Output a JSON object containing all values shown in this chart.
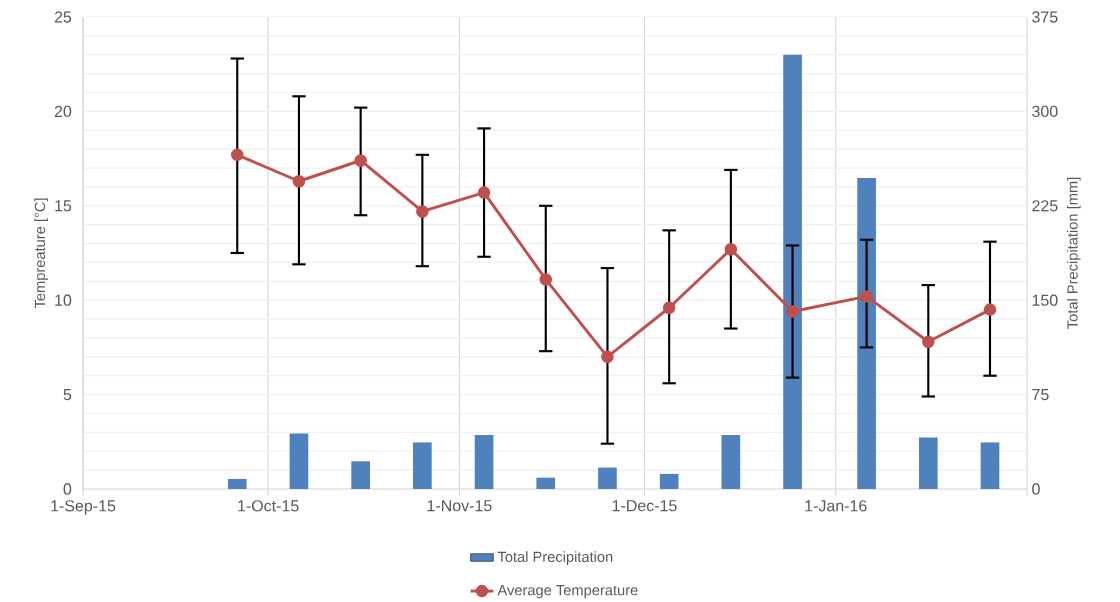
{
  "chart_data": {
    "type": "bar",
    "x": [
      "2015-09-26",
      "2015-10-06",
      "2015-10-16",
      "2015-10-26",
      "2015-11-05",
      "2015-11-15",
      "2015-11-25",
      "2015-12-05",
      "2015-12-15",
      "2015-12-25",
      "2016-01-06",
      "2016-01-16",
      "2016-01-26"
    ],
    "series": [
      {
        "name": "Total Precipitation",
        "axis": "y2",
        "color": "#4f81bd",
        "values": [
          8,
          44,
          22,
          37,
          43,
          9,
          17,
          12,
          43,
          345,
          247,
          41,
          37
        ]
      },
      {
        "name": "Average Temperature",
        "type": "line",
        "color": "#c0504d",
        "marker": "circle",
        "line_style": "solid",
        "values": [
          17.7,
          16.3,
          17.4,
          14.7,
          15.7,
          11.1,
          7.0,
          9.6,
          12.7,
          9.4,
          10.2,
          7.8,
          9.5
        ],
        "errors": [
          [
            12.5,
            22.8
          ],
          [
            11.9,
            20.8
          ],
          [
            14.5,
            20.2
          ],
          [
            11.8,
            17.7
          ],
          [
            12.3,
            19.1
          ],
          [
            7.3,
            15.0
          ],
          [
            2.4,
            11.7
          ],
          [
            5.6,
            13.7
          ],
          [
            8.5,
            16.9
          ],
          [
            5.9,
            12.9
          ],
          [
            7.5,
            13.2
          ],
          [
            4.9,
            10.8
          ],
          [
            6.0,
            13.1
          ]
        ]
      }
    ],
    "ylabel": "Tempreature [°C]",
    "y2label": "Total Precipitation [mm]",
    "xlim": [
      "2015-09-01",
      "2016-02-01"
    ],
    "xticks": [
      {
        "value": "2015-09-01",
        "label": "1-Sep-15"
      },
      {
        "value": "2015-10-01",
        "label": "1-Oct-15"
      },
      {
        "value": "2015-11-01",
        "label": "1-Nov-15"
      },
      {
        "value": "2015-12-01",
        "label": "1-Dec-15"
      },
      {
        "value": "2016-01-01",
        "label": "1-Jan-16"
      },
      {
        "value": "2016-02-01",
        "label": null
      }
    ],
    "ylim": [
      0,
      25
    ],
    "yticks": [
      0,
      {
        "value": 1,
        "label": null
      },
      {
        "value": 2,
        "label": null
      },
      {
        "value": 3,
        "label": null
      },
      {
        "value": 4,
        "label": null
      },
      5,
      {
        "value": 6,
        "label": null
      },
      {
        "value": 7,
        "label": null
      },
      {
        "value": 8,
        "label": null
      },
      {
        "value": 9,
        "label": null
      },
      10,
      {
        "value": 11,
        "label": null
      },
      {
        "value": 12,
        "label": null
      },
      {
        "value": 13,
        "label": null
      },
      {
        "value": 14,
        "label": null
      },
      15,
      {
        "value": 16,
        "label": null
      },
      {
        "value": 17,
        "label": null
      },
      {
        "value": 18,
        "label": null
      },
      {
        "value": 19,
        "label": null
      },
      20,
      {
        "value": 21,
        "label": null
      },
      {
        "value": 22,
        "label": null
      },
      {
        "value": 23,
        "label": null
      },
      {
        "value": 24,
        "label": null
      },
      25
    ],
    "y2lim": [
      0,
      375
    ],
    "y2ticks": [
      0,
      75,
      150,
      225,
      300,
      375
    ],
    "grid": true,
    "legend": "bottom"
  }
}
